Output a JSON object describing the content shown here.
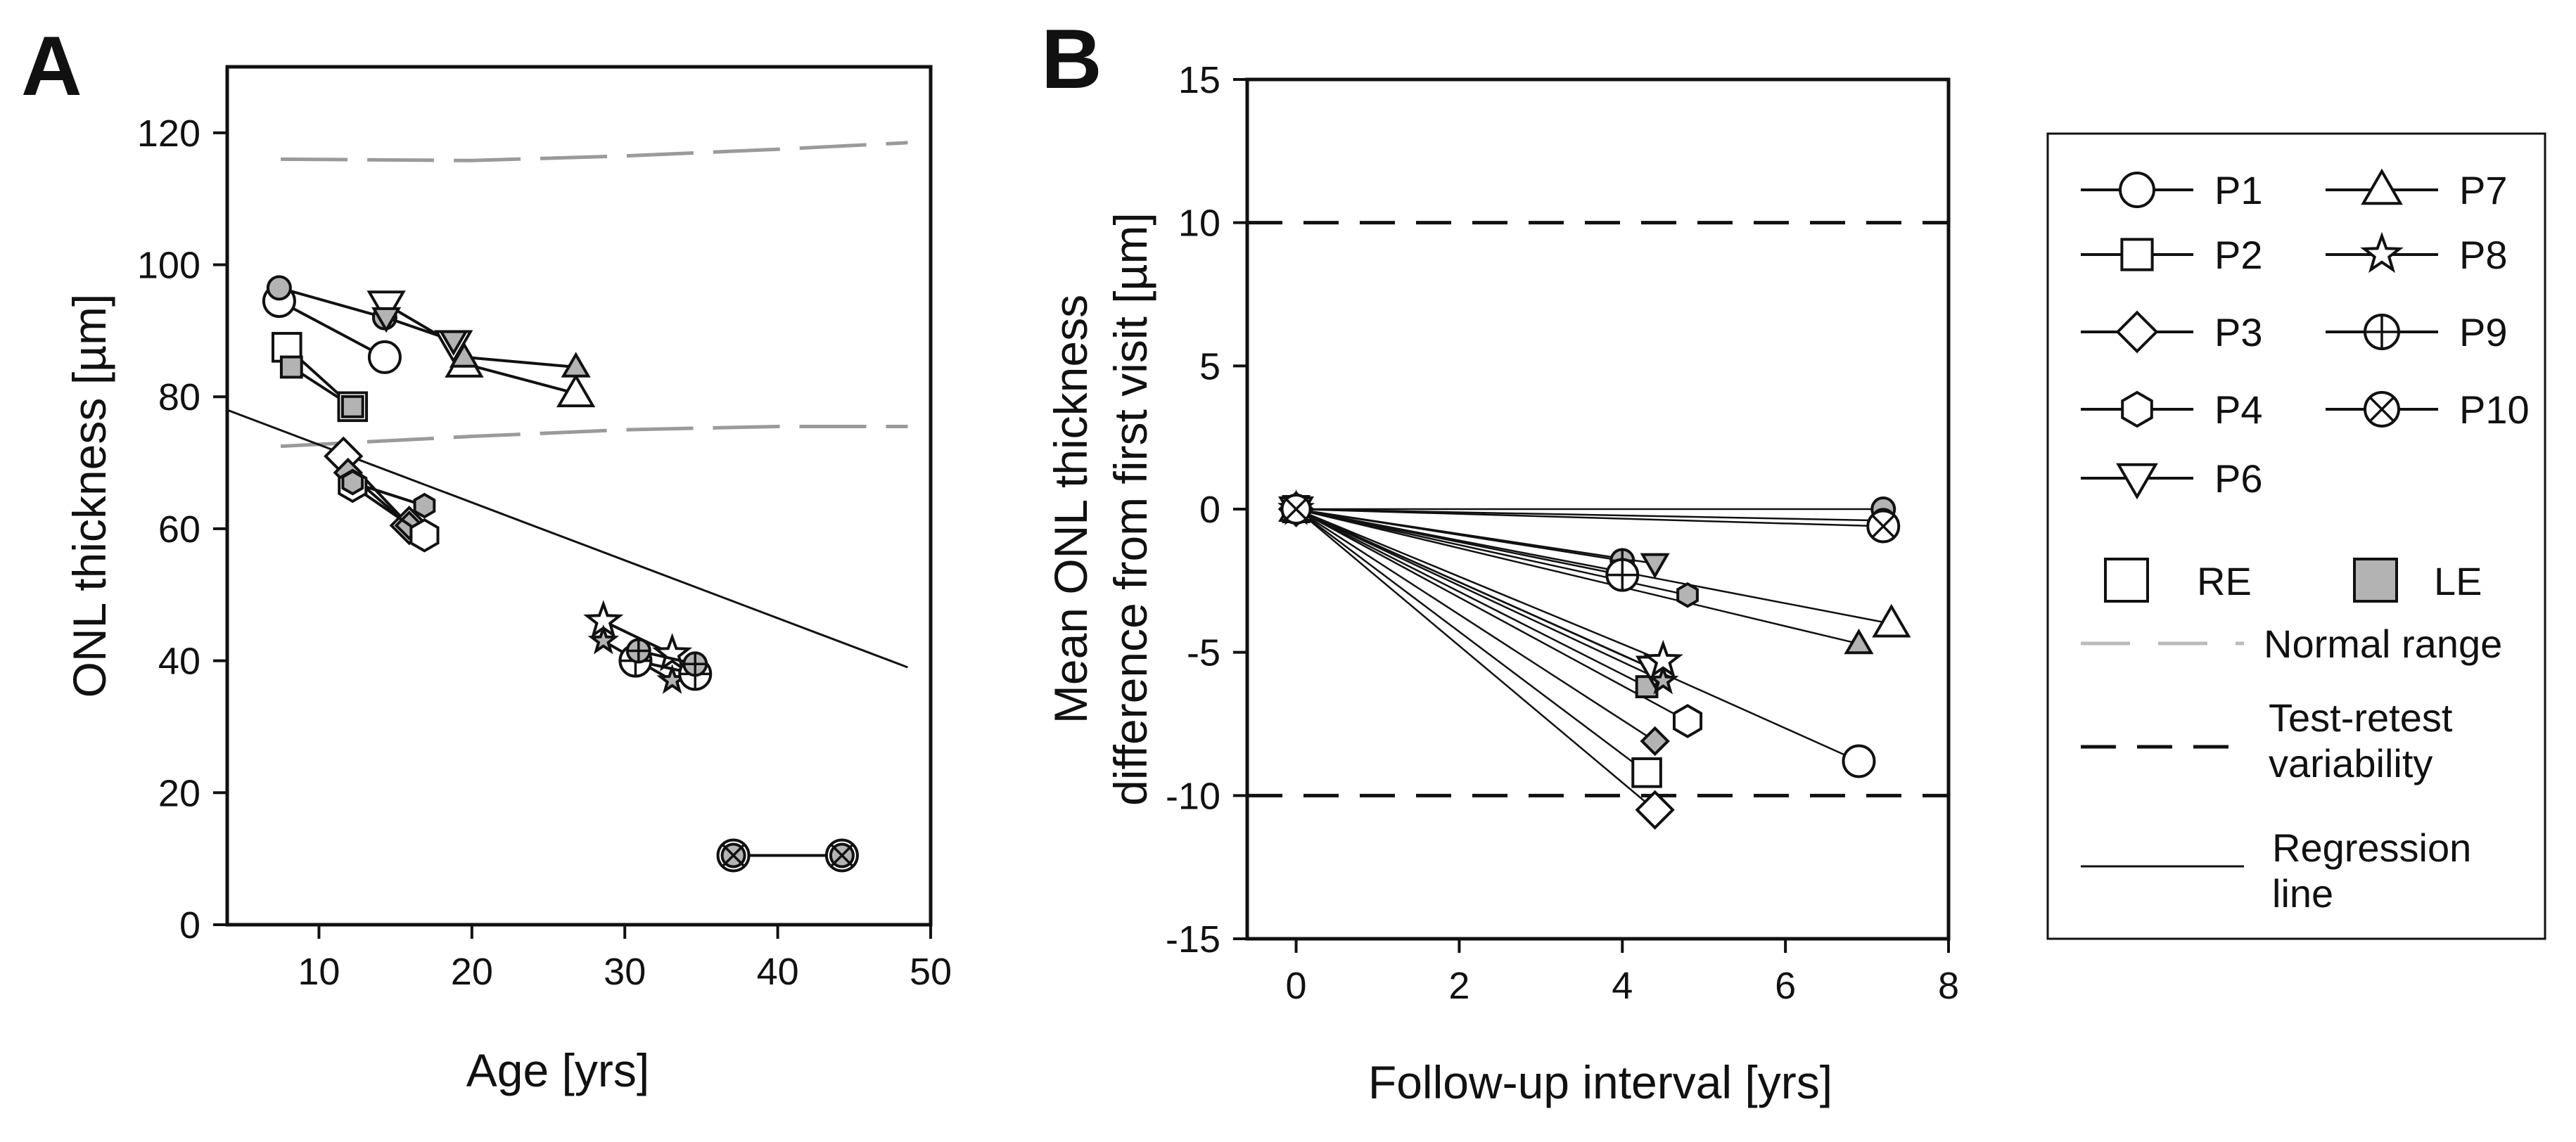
{
  "chart_data": [
    {
      "panel_label": "A",
      "type": "scatter",
      "xlabel": "Age [yrs]",
      "ylabel": "ONL thickness [µm]",
      "xlim": [
        4,
        50
      ],
      "ylim": [
        0,
        130
      ],
      "xticks": [
        10,
        20,
        30,
        40,
        50
      ],
      "yticks": [
        0,
        20,
        40,
        60,
        80,
        100,
        120
      ],
      "normal_range": [
        {
          "x": [
            7.5,
            20,
            30,
            40,
            48.5
          ],
          "y": [
            116,
            115.8,
            116.5,
            117.5,
            118.5
          ]
        },
        {
          "x": [
            7.5,
            20,
            30,
            40,
            48.5
          ],
          "y": [
            72.5,
            74,
            75,
            75.5,
            75.5
          ]
        }
      ],
      "regression_line": {
        "x": [
          4,
          48.5
        ],
        "y": [
          78,
          39
        ]
      },
      "series": [
        {
          "name": "P1",
          "marker": "circle",
          "points": [
            {
              "x": 7.4,
              "y": 94.5,
              "eye": "RE"
            },
            {
              "x": 14.3,
              "y": 86,
              "eye": "RE"
            },
            {
              "x": 7.4,
              "y": 96.5,
              "eye": "LE"
            },
            {
              "x": 14.3,
              "y": 92,
              "eye": "LE"
            }
          ]
        },
        {
          "name": "P2",
          "marker": "square",
          "points": [
            {
              "x": 7.9,
              "y": 87.5,
              "eye": "RE"
            },
            {
              "x": 12.2,
              "y": 78.5,
              "eye": "RE"
            },
            {
              "x": 8.2,
              "y": 84.5,
              "eye": "LE"
            },
            {
              "x": 12.2,
              "y": 78.5,
              "eye": "LE"
            }
          ]
        },
        {
          "name": "P3",
          "marker": "diamond",
          "points": [
            {
              "x": 11.6,
              "y": 71,
              "eye": "RE"
            },
            {
              "x": 15.9,
              "y": 60.5,
              "eye": "RE"
            },
            {
              "x": 11.9,
              "y": 68.5,
              "eye": "LE"
            },
            {
              "x": 15.9,
              "y": 60.5,
              "eye": "LE"
            }
          ]
        },
        {
          "name": "P4",
          "marker": "hexagon",
          "points": [
            {
              "x": 12.2,
              "y": 66.5,
              "eye": "RE"
            },
            {
              "x": 16.9,
              "y": 59,
              "eye": "RE"
            },
            {
              "x": 12.2,
              "y": 67,
              "eye": "LE"
            },
            {
              "x": 16.9,
              "y": 63.5,
              "eye": "LE"
            }
          ]
        },
        {
          "name": "P6",
          "marker": "triangle-down",
          "points": [
            {
              "x": 14.4,
              "y": 94,
              "eye": "RE"
            },
            {
              "x": 18.8,
              "y": 88,
              "eye": "RE"
            },
            {
              "x": 14.4,
              "y": 92,
              "eye": "LE"
            },
            {
              "x": 18.8,
              "y": 88.5,
              "eye": "LE"
            }
          ]
        },
        {
          "name": "P7",
          "marker": "triangle-up",
          "points": [
            {
              "x": 19.5,
              "y": 85,
              "eye": "RE"
            },
            {
              "x": 26.8,
              "y": 80.5,
              "eye": "RE"
            },
            {
              "x": 19.5,
              "y": 86,
              "eye": "LE"
            },
            {
              "x": 26.8,
              "y": 84.5,
              "eye": "LE"
            }
          ]
        },
        {
          "name": "P8",
          "marker": "star",
          "points": [
            {
              "x": 28.6,
              "y": 46,
              "eye": "RE"
            },
            {
              "x": 33.1,
              "y": 41,
              "eye": "RE"
            },
            {
              "x": 28.6,
              "y": 43,
              "eye": "LE"
            },
            {
              "x": 33.1,
              "y": 37,
              "eye": "LE"
            }
          ]
        },
        {
          "name": "P9",
          "marker": "circle-plus",
          "points": [
            {
              "x": 30.7,
              "y": 40,
              "eye": "RE"
            },
            {
              "x": 34.6,
              "y": 38,
              "eye": "RE"
            },
            {
              "x": 30.9,
              "y": 41.5,
              "eye": "LE"
            },
            {
              "x": 34.6,
              "y": 39.5,
              "eye": "LE"
            }
          ]
        },
        {
          "name": "P10",
          "marker": "circle-cross",
          "points": [
            {
              "x": 37.1,
              "y": 10.5,
              "eye": "RE"
            },
            {
              "x": 44.2,
              "y": 10.5,
              "eye": "RE"
            },
            {
              "x": 37.1,
              "y": 10.5,
              "eye": "LE"
            },
            {
              "x": 44.2,
              "y": 10.5,
              "eye": "LE"
            }
          ]
        }
      ]
    },
    {
      "panel_label": "B",
      "type": "line",
      "xlabel": "Follow-up interval [yrs]",
      "ylabel_lines": [
        "Mean ONL thickness",
        "difference from first visit [µm]"
      ],
      "xlim": [
        -0.6,
        8
      ],
      "ylim": [
        -15,
        15
      ],
      "xticks": [
        0,
        2,
        4,
        6,
        8
      ],
      "yticks": [
        -15,
        -10,
        -5,
        0,
        5,
        10,
        15
      ],
      "test_retest_variability": [
        10,
        -10
      ],
      "series": [
        {
          "name": "P1",
          "marker": "circle",
          "points": [
            {
              "x": 7.2,
              "y": 0,
              "eye": "LE"
            },
            {
              "x": 6.9,
              "y": -8.8,
              "eye": "RE"
            }
          ]
        },
        {
          "name": "P2",
          "marker": "square",
          "points": [
            {
              "x": 4.3,
              "y": -6.2,
              "eye": "LE"
            },
            {
              "x": 4.3,
              "y": -9.2,
              "eye": "RE"
            }
          ]
        },
        {
          "name": "P3",
          "marker": "diamond",
          "points": [
            {
              "x": 4.4,
              "y": -8.1,
              "eye": "LE"
            },
            {
              "x": 4.4,
              "y": -10.5,
              "eye": "RE"
            }
          ]
        },
        {
          "name": "P4",
          "marker": "hexagon",
          "points": [
            {
              "x": 4.8,
              "y": -3.0,
              "eye": "LE"
            },
            {
              "x": 4.8,
              "y": -7.4,
              "eye": "RE"
            }
          ]
        },
        {
          "name": "P6",
          "marker": "triangle-down",
          "points": [
            {
              "x": 4.4,
              "y": -1.9,
              "eye": "LE"
            },
            {
              "x": 4.4,
              "y": -5.6,
              "eye": "RE"
            }
          ]
        },
        {
          "name": "P7",
          "marker": "triangle-up",
          "points": [
            {
              "x": 6.9,
              "y": -4.7,
              "eye": "LE"
            },
            {
              "x": 7.3,
              "y": -4.0,
              "eye": "RE"
            }
          ]
        },
        {
          "name": "P8",
          "marker": "star",
          "points": [
            {
              "x": 4.5,
              "y": -6.0,
              "eye": "LE"
            },
            {
              "x": 4.5,
              "y": -5.3,
              "eye": "RE"
            }
          ]
        },
        {
          "name": "P9",
          "marker": "circle-plus",
          "points": [
            {
              "x": 4.0,
              "y": -1.8,
              "eye": "LE"
            },
            {
              "x": 4.0,
              "y": -2.3,
              "eye": "RE"
            }
          ]
        },
        {
          "name": "P10",
          "marker": "circle-cross",
          "points": [
            {
              "x": 7.2,
              "y": -0.4,
              "eye": "LE"
            },
            {
              "x": 7.2,
              "y": -0.6,
              "eye": "RE"
            }
          ]
        }
      ]
    }
  ],
  "legend": {
    "series": [
      {
        "label": "P1",
        "marker": "circle"
      },
      {
        "label": "P2",
        "marker": "square"
      },
      {
        "label": "P3",
        "marker": "diamond"
      },
      {
        "label": "P4",
        "marker": "hexagon"
      },
      {
        "label": "P6",
        "marker": "triangle-down"
      },
      {
        "label": "P7",
        "marker": "triangle-up"
      },
      {
        "label": "P8",
        "marker": "star"
      },
      {
        "label": "P9",
        "marker": "circle-plus"
      },
      {
        "label": "P10",
        "marker": "circle-cross"
      }
    ],
    "eye_re": "RE",
    "eye_le": "LE",
    "normal_range_label": "Normal range",
    "test_retest_lines": [
      "Test-retest",
      "variability"
    ],
    "regression_lines": [
      "Regression",
      "line"
    ]
  },
  "colors": {
    "le_fill": "#b3b3b3",
    "re_fill": "#ffffff",
    "normal_range": "#9a9a9a",
    "ink": "#111111"
  }
}
